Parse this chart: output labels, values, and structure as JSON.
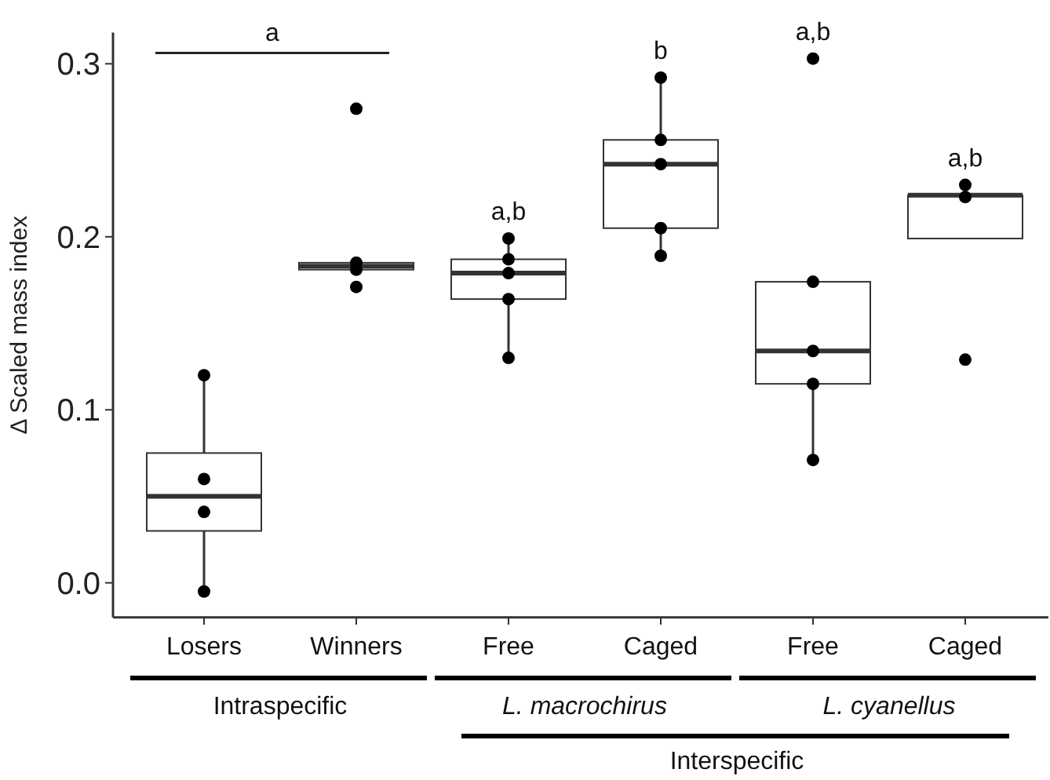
{
  "chart_data": {
    "type": "box",
    "ylabel": "Δ Scaled mass index",
    "categories": [
      "Losers",
      "Winners",
      "Free",
      "Caged",
      "Free",
      "Caged"
    ],
    "boxes": [
      {
        "low": -0.005,
        "q1": 0.03,
        "median": 0.05,
        "q3": 0.075,
        "high": 0.12
      },
      {
        "low": 0.181,
        "q1": 0.181,
        "median": 0.183,
        "q3": 0.185,
        "high": 0.185
      },
      {
        "low": 0.13,
        "q1": 0.164,
        "median": 0.179,
        "q3": 0.187,
        "high": 0.199
      },
      {
        "low": 0.189,
        "q1": 0.205,
        "median": 0.242,
        "q3": 0.256,
        "high": 0.292
      },
      {
        "low": 0.071,
        "q1": 0.115,
        "median": 0.134,
        "q3": 0.174,
        "high": 0.174
      },
      {
        "low": 0.199,
        "q1": 0.199,
        "median": 0.224,
        "q3": 0.224,
        "high": 0.23
      }
    ],
    "series": [
      {
        "type": "scatter",
        "color": "#000000",
        "values": [
          -0.005,
          0.171,
          0.13,
          0.189,
          0.071,
          0.129
        ]
      },
      {
        "type": "scatter",
        "color": "#000000",
        "values": [
          0.041,
          0.181,
          0.164,
          0.205,
          0.115,
          0.223
        ]
      },
      {
        "type": "scatter",
        "color": "#000000",
        "values": [
          0.06,
          0.185,
          0.179,
          0.242,
          0.134,
          0.23
        ]
      },
      {
        "type": "scatter",
        "color": "#000000",
        "values": [
          0.12,
          0.274,
          0.187,
          0.256,
          0.174,
          null
        ]
      },
      {
        "type": "scatter",
        "color": "#000000",
        "values": [
          null,
          null,
          0.199,
          0.292,
          0.303,
          null
        ]
      }
    ],
    "ylim": [
      -0.02,
      0.318
    ],
    "yticks": [
      {
        "value": 0,
        "label": "0.0"
      },
      {
        "value": 0.1,
        "label": "0.1"
      },
      {
        "value": 0.2,
        "label": "0.2"
      },
      {
        "value": 0.3,
        "label": "0.3"
      }
    ],
    "grid": false,
    "marker": "circle",
    "annotations": [
      "a",
      "a,b",
      "b",
      "a,b",
      "a,b",
      "Intraspecific",
      "L. macrochirus",
      "L. cyanellus",
      "Interspecific"
    ]
  }
}
